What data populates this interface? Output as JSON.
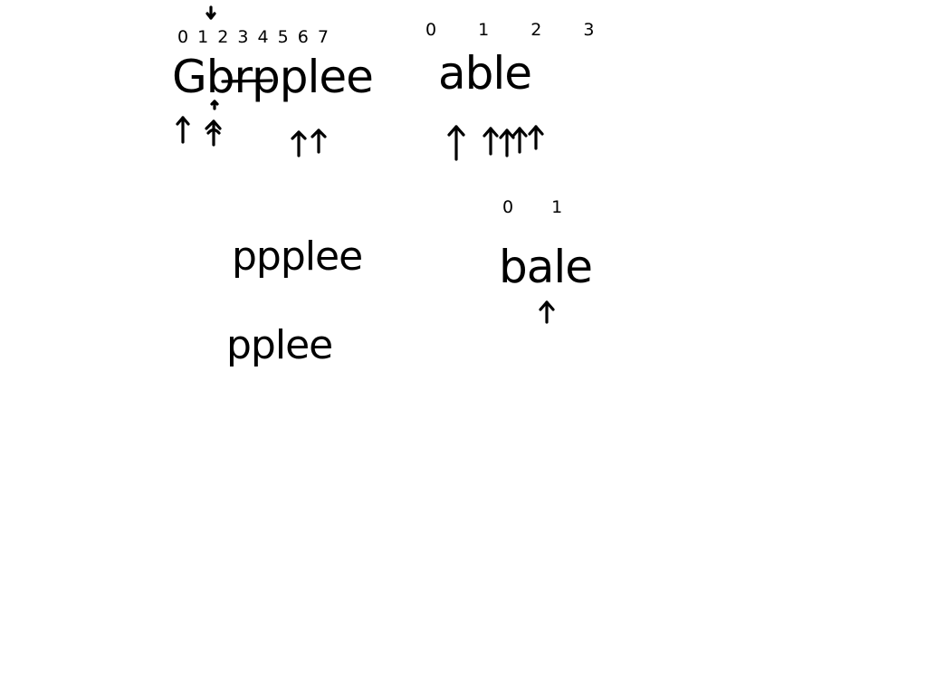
{
  "sketch": {
    "left": {
      "indices": "0 1 2 3 4 5 6 7",
      "word": "Gbrpplee"
    },
    "right": {
      "indices": "0 1 2 3",
      "word": "able"
    },
    "step_one": {
      "word": "ppplee"
    },
    "step_two": {
      "word": "pplee"
    },
    "swap": {
      "indices": "0 1",
      "word": "bale"
    }
  },
  "colors": {
    "background": "#ffffff",
    "ink": "#000000"
  },
  "icons": [
    "pointer-arrow-icon",
    "down-arrow-icon",
    "strike-line-icon"
  ]
}
